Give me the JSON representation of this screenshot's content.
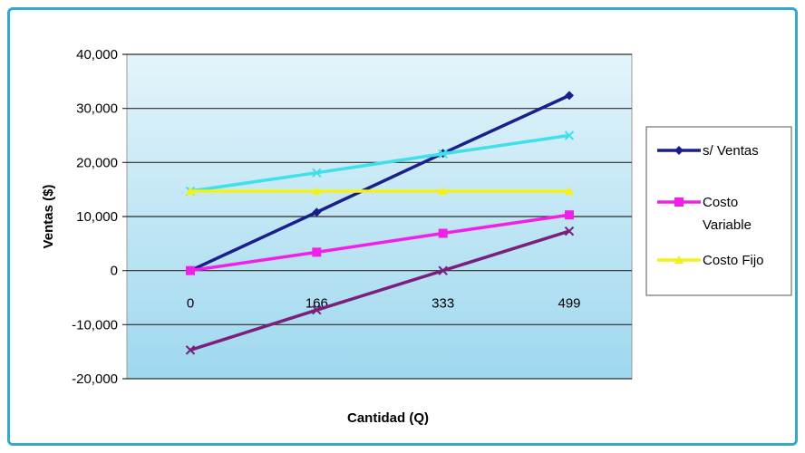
{
  "colors": {
    "frame_border": "#39A9C9",
    "plot_top": "#E4F4FB",
    "plot_bottom": "#9ED8EE",
    "gridline": "#2B2B2B"
  },
  "chart_data": {
    "type": "line",
    "title": "",
    "xlabel": "Cantidad (Q)",
    "ylabel": "Ventas ($)",
    "categories": [
      "0",
      "166",
      "333",
      "499"
    ],
    "ylim": [
      -20000,
      40000
    ],
    "yticks": [
      -20000,
      -10000,
      0,
      10000,
      20000,
      30000,
      40000
    ],
    "ytick_labels": [
      "-20,000",
      "-10,000",
      "0",
      "10,000",
      "20,000",
      "30,000",
      "40,000"
    ],
    "grid": true,
    "legend_position": "right",
    "series": [
      {
        "name": "s/ Ventas",
        "color": "#1B1F8A",
        "marker": "diamond",
        "values": [
          0,
          10800,
          21700,
          32400
        ]
      },
      {
        "name": "",
        "color": "#3FE0EC",
        "marker": "x",
        "values": [
          14700,
          18100,
          21600,
          25000
        ]
      },
      {
        "name": "Costo Fijo",
        "color": "#F4F214",
        "marker": "triangle",
        "values": [
          14700,
          14700,
          14700,
          14700
        ]
      },
      {
        "name": "Costo Variable",
        "color": "#F020E8",
        "marker": "square",
        "values": [
          0,
          3400,
          6900,
          10300
        ]
      },
      {
        "name": "",
        "color": "#7A1F7C",
        "marker": "x",
        "values": [
          -14700,
          -7300,
          0,
          7300
        ]
      }
    ],
    "legend": [
      {
        "label_lines": [
          "s/ Ventas"
        ],
        "color": "#1B1F8A",
        "marker": "diamond"
      },
      {
        "label_lines": [
          "Costo",
          "Variable"
        ],
        "color": "#F020E8",
        "marker": "square"
      },
      {
        "label_lines": [
          "Costo Fijo"
        ],
        "color": "#F4F214",
        "marker": "triangle"
      }
    ]
  }
}
